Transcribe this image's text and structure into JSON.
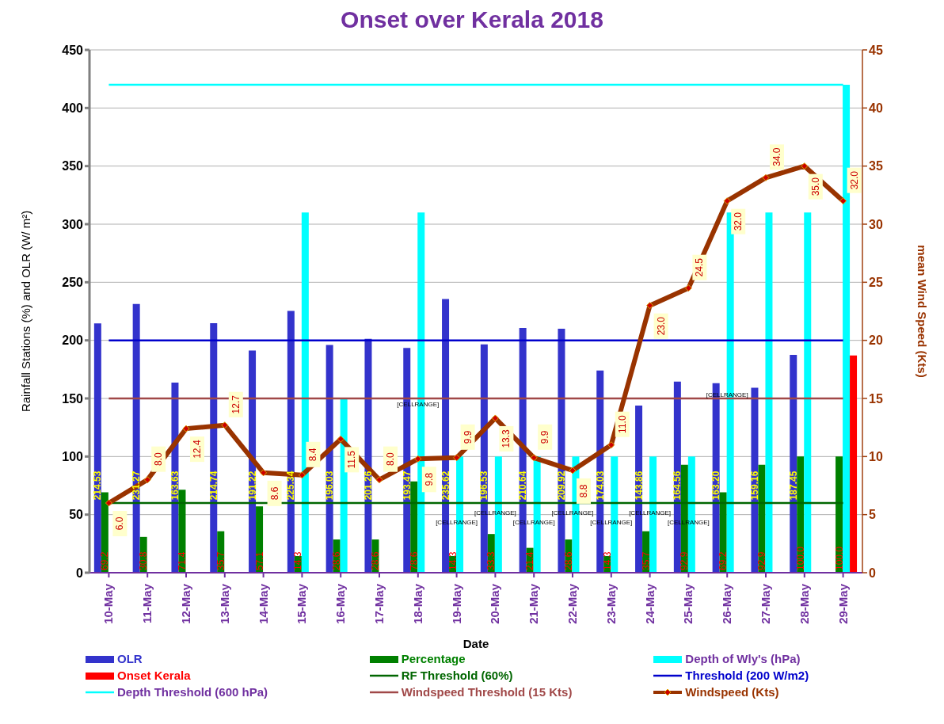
{
  "chart_data": {
    "type": "bar",
    "title": "Onset over Kerala 2018",
    "xlabel": "Date",
    "ylabel": "Rainfall Stations (%) and  OLR (W/ m²)",
    "y2label": "mean Wind Speed (Kts)",
    "categories": [
      "10-May",
      "11-May",
      "12-May",
      "13-May",
      "14-May",
      "15-May",
      "16-May",
      "17-May",
      "18-May",
      "19-May",
      "20-May",
      "21-May",
      "22-May",
      "23-May",
      "24-May",
      "25-May",
      "26-May",
      "27-May",
      "28-May",
      "29-May"
    ],
    "series": [
      {
        "name": "OLR",
        "color": "#3333cc",
        "values": [
          214.53,
          231.27,
          163.63,
          214.74,
          191.22,
          225.34,
          196.03,
          201.26,
          193.47,
          235.62,
          196.53,
          210.64,
          209.92,
          174.03,
          143.86,
          164.56,
          163.2,
          159.16,
          187.45,
          null
        ],
        "value_labels": [
          "214.53",
          "231.27",
          "163.63",
          "214.74",
          "191.22",
          "225.34",
          "196.03",
          "201.26",
          "193.47",
          "235.62",
          "196.53",
          "210.64",
          "209.92",
          "174.03",
          "143.86",
          "164.56",
          "163.20",
          "159.16",
          "187.45",
          null
        ]
      },
      {
        "name": "Percentage",
        "color": "#008000",
        "values": [
          69.2,
          30.8,
          71.4,
          35.7,
          57.1,
          14.3,
          28.6,
          28.6,
          78.6,
          14.3,
          33.3,
          21.4,
          28.6,
          14.3,
          35.7,
          92.9,
          69.2,
          92.9,
          100.0,
          100.0
        ],
        "value_labels": [
          "69.2",
          "30.8",
          "71.4",
          "35.7",
          "57.1",
          "14.3",
          "28.6",
          "28.6",
          "78.6",
          "14.3",
          "33.3",
          "21.4",
          "28.6",
          "14.3",
          "35.7",
          "92.9",
          "69.2",
          "92.9",
          "100.0",
          "100.0"
        ]
      },
      {
        "name": "Depth of Wly's (hPa)",
        "color": "#00ffff",
        "values": [
          null,
          null,
          null,
          null,
          null,
          310,
          150,
          null,
          310,
          100,
          100,
          100,
          100,
          100,
          100,
          100,
          310,
          310,
          310,
          420
        ]
      },
      {
        "name": "Onset Kerala",
        "color": "#ff0000",
        "values": [
          null,
          null,
          null,
          null,
          null,
          null,
          null,
          null,
          null,
          null,
          null,
          null,
          null,
          null,
          null,
          null,
          null,
          null,
          null,
          187
        ]
      },
      {
        "name": "RF Threshold (60%)",
        "type": "line",
        "color": "#006600",
        "values": [
          60,
          60,
          60,
          60,
          60,
          60,
          60,
          60,
          60,
          60,
          60,
          60,
          60,
          60,
          60,
          60,
          60,
          60,
          60,
          60
        ]
      },
      {
        "name": "Threshold (200 W/m2)",
        "type": "line",
        "color": "#0000cc",
        "values": [
          200,
          200,
          200,
          200,
          200,
          200,
          200,
          200,
          200,
          200,
          200,
          200,
          200,
          200,
          200,
          200,
          200,
          200,
          200,
          200
        ]
      },
      {
        "name": "Depth Threshold (600 hPa)",
        "type": "line",
        "color": "#00ffff",
        "values": [
          420,
          420,
          420,
          420,
          420,
          420,
          420,
          420,
          420,
          420,
          420,
          420,
          420,
          420,
          420,
          420,
          420,
          420,
          420,
          420
        ]
      },
      {
        "name": "Windspeed Threshold (15 Kts)",
        "type": "line",
        "color": "#a04848",
        "values": [
          150,
          150,
          150,
          150,
          150,
          150,
          150,
          150,
          150,
          150,
          150,
          150,
          150,
          150,
          150,
          150,
          150,
          150,
          150,
          150
        ]
      },
      {
        "name": "Windspeed (Kts)",
        "type": "line",
        "axis": "y2",
        "marker": "diamond",
        "color": "#993300",
        "values": [
          6.0,
          8.0,
          12.4,
          12.7,
          8.6,
          8.4,
          11.5,
          8.0,
          9.8,
          9.9,
          13.3,
          9.9,
          8.8,
          11.0,
          23.0,
          24.5,
          32.0,
          34.0,
          35.0,
          32.0
        ],
        "value_labels": [
          "6.0",
          "8.0",
          "12.4",
          "12.7",
          "8.6",
          "8.4",
          "11.5",
          "8.0",
          "9.8",
          "9.9",
          "13.3",
          "9.9",
          "8.8",
          "11.0",
          "23.0",
          "24.5",
          "32.0",
          "34.0",
          "35.0",
          "32.0"
        ]
      }
    ],
    "ylim": [
      0,
      450
    ],
    "yticks": [
      0,
      50,
      100,
      150,
      200,
      250,
      300,
      350,
      400,
      450
    ],
    "y2lim": [
      0,
      45
    ],
    "y2ticks": [
      0,
      5,
      10,
      15,
      20,
      25,
      30,
      35,
      40,
      45
    ],
    "grid": "y",
    "legend": "bottom",
    "annotations": [
      {
        "text": "[CELLRANGE]",
        "x": "18-May",
        "y": 150
      },
      {
        "text": "[CELLRANGE]",
        "x": "26-May",
        "y": 150
      },
      {
        "text": "[CELLRANGE]",
        "x": "19-May",
        "y": 48
      },
      {
        "text": "[CELLRANGE]",
        "x": "20-May",
        "y": 48
      },
      {
        "text": "[CELLRANGE]",
        "x": "21-May",
        "y": 48
      },
      {
        "text": "[CELLRANGE]",
        "x": "22-May",
        "y": 48
      },
      {
        "text": "[CELLRANGE]",
        "x": "23-May",
        "y": 48
      },
      {
        "text": "[CELLRANGE]",
        "x": "24-May",
        "y": 48
      },
      {
        "text": "[CELLRANGE]",
        "x": "25-May",
        "y": 48
      }
    ]
  }
}
